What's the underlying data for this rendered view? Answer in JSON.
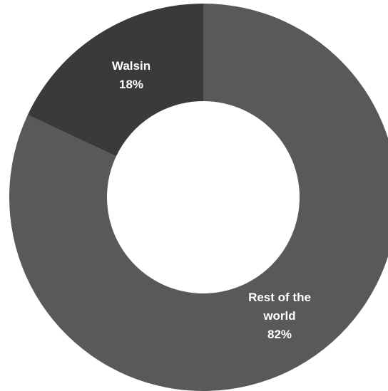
{
  "chart_data": {
    "type": "pie",
    "style": "donut",
    "categories": [
      "Rest of the world",
      "Walsin"
    ],
    "values": [
      82,
      18
    ],
    "unit": "%",
    "colors": [
      "#595959",
      "#3a3a3a"
    ],
    "labels": [
      {
        "lines": [
          "Rest of the",
          "world",
          "82%"
        ]
      },
      {
        "lines": [
          "Walsin",
          "18%"
        ]
      }
    ],
    "title": "",
    "legend": "none"
  }
}
